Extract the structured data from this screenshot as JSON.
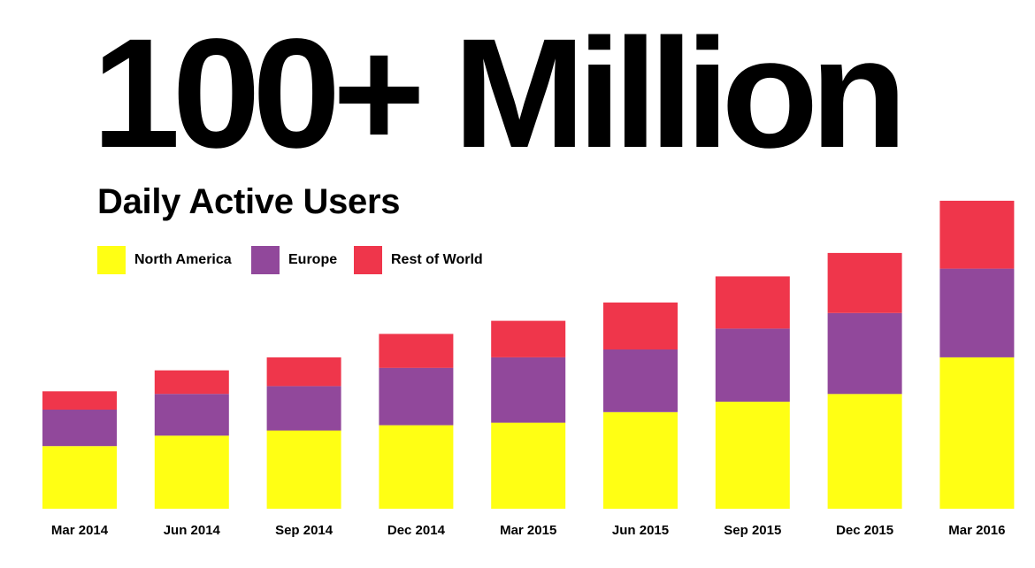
{
  "headline": "100+ Million",
  "chart_data": {
    "type": "bar",
    "stacked": true,
    "title": "Daily Active Users",
    "xlabel": "",
    "ylabel": "",
    "ylim": [
      0,
      115
    ],
    "categories": [
      "Mar 2014",
      "Jun 2014",
      "Sep 2014",
      "Dec 2014",
      "Mar 2015",
      "Jun 2015",
      "Sep 2015",
      "Dec 2015",
      "Mar 2016"
    ],
    "series": [
      {
        "name": "North America",
        "color": "#FFFF14",
        "values": [
          24,
          28,
          30,
          32,
          33,
          37,
          41,
          44,
          58
        ]
      },
      {
        "name": "Europe",
        "color": "#91489B",
        "values": [
          14,
          16,
          17,
          22,
          25,
          24,
          28,
          31,
          34
        ]
      },
      {
        "name": "Rest of World",
        "color": "#EF364B",
        "values": [
          7,
          9,
          11,
          13,
          14,
          18,
          20,
          23,
          26
        ]
      }
    ],
    "legend_position": "top-left",
    "grid": false
  }
}
